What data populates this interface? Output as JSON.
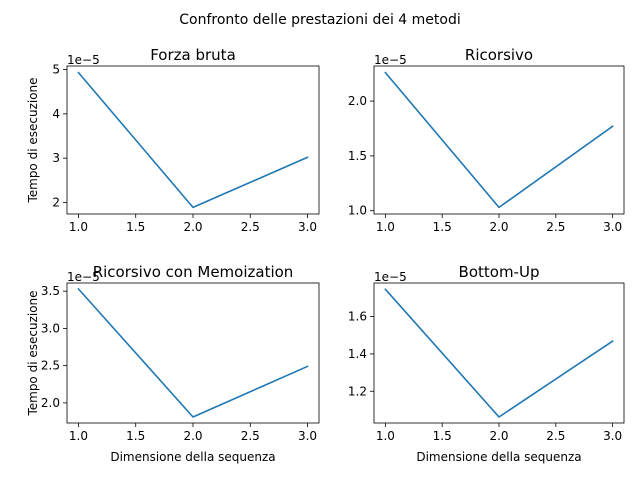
{
  "figure": {
    "suptitle": "Confronto delle prestazioni dei 4 metodi"
  },
  "chart_data": [
    {
      "type": "line",
      "title": "Forza bruta",
      "xlabel": "",
      "ylabel": "Tempo di esecuzione",
      "offset_text": "1e−5",
      "x": [
        1.0,
        2.0,
        3.0
      ],
      "y": [
        4.93e-05,
        1.89e-05,
        3.02e-05
      ],
      "xlim": [
        0.9,
        3.1
      ],
      "ylim": [
        1.74e-05,
        5.08e-05
      ],
      "xticks": [
        1.0,
        1.5,
        2.0,
        2.5,
        3.0
      ],
      "xtick_labels": [
        "1.0",
        "1.5",
        "2.0",
        "2.5",
        "3.0"
      ],
      "yticks": [
        2,
        3,
        4,
        5
      ],
      "ytick_labels": [
        "2",
        "3",
        "4",
        "5"
      ],
      "color": "#1f77b4",
      "grid": false
    },
    {
      "type": "line",
      "title": "Ricorsivo",
      "xlabel": "",
      "ylabel": "",
      "offset_text": "1e−5",
      "x": [
        1.0,
        2.0,
        3.0
      ],
      "y": [
        2.26e-05,
        1.03e-05,
        1.77e-05
      ],
      "xlim": [
        0.9,
        3.1
      ],
      "ylim": [
        9.7e-06,
        2.32e-05
      ],
      "xticks": [
        1.0,
        1.5,
        2.0,
        2.5,
        3.0
      ],
      "xtick_labels": [
        "1.0",
        "1.5",
        "2.0",
        "2.5",
        "3.0"
      ],
      "yticks": [
        1.0,
        1.5,
        2.0
      ],
      "ytick_labels": [
        "1.0",
        "1.5",
        "2.0"
      ],
      "color": "#1f77b4",
      "grid": false
    },
    {
      "type": "line",
      "title": "Ricorsivo con Memoization",
      "xlabel": "Dimensione della sequenza",
      "ylabel": "Tempo di esecuzione",
      "offset_text": "1e−5",
      "x": [
        1.0,
        2.0,
        3.0
      ],
      "y": [
        3.53e-05,
        1.81e-05,
        2.49e-05
      ],
      "xlim": [
        0.9,
        3.1
      ],
      "ylim": [
        1.73e-05,
        3.61e-05
      ],
      "xticks": [
        1.0,
        1.5,
        2.0,
        2.5,
        3.0
      ],
      "xtick_labels": [
        "1.0",
        "1.5",
        "2.0",
        "2.5",
        "3.0"
      ],
      "yticks": [
        2.0,
        2.5,
        3.0,
        3.5
      ],
      "ytick_labels": [
        "2.0",
        "2.5",
        "3.0",
        "3.5"
      ],
      "color": "#1f77b4",
      "grid": false
    },
    {
      "type": "line",
      "title": "Bottom-Up",
      "xlabel": "Dimensione della sequenza",
      "ylabel": "",
      "offset_text": "1e−5",
      "x": [
        1.0,
        2.0,
        3.0
      ],
      "y": [
        1.746e-05,
        1.062e-05,
        1.469e-05
      ],
      "xlim": [
        0.9,
        3.1
      ],
      "ylim": [
        1.03e-05,
        1.78e-05
      ],
      "xticks": [
        1.0,
        1.5,
        2.0,
        2.5,
        3.0
      ],
      "xtick_labels": [
        "1.0",
        "1.5",
        "2.0",
        "2.5",
        "3.0"
      ],
      "yticks": [
        1.2,
        1.4,
        1.6
      ],
      "ytick_labels": [
        "1.2",
        "1.4",
        "1.6"
      ],
      "color": "#1f77b4",
      "grid": false
    }
  ]
}
